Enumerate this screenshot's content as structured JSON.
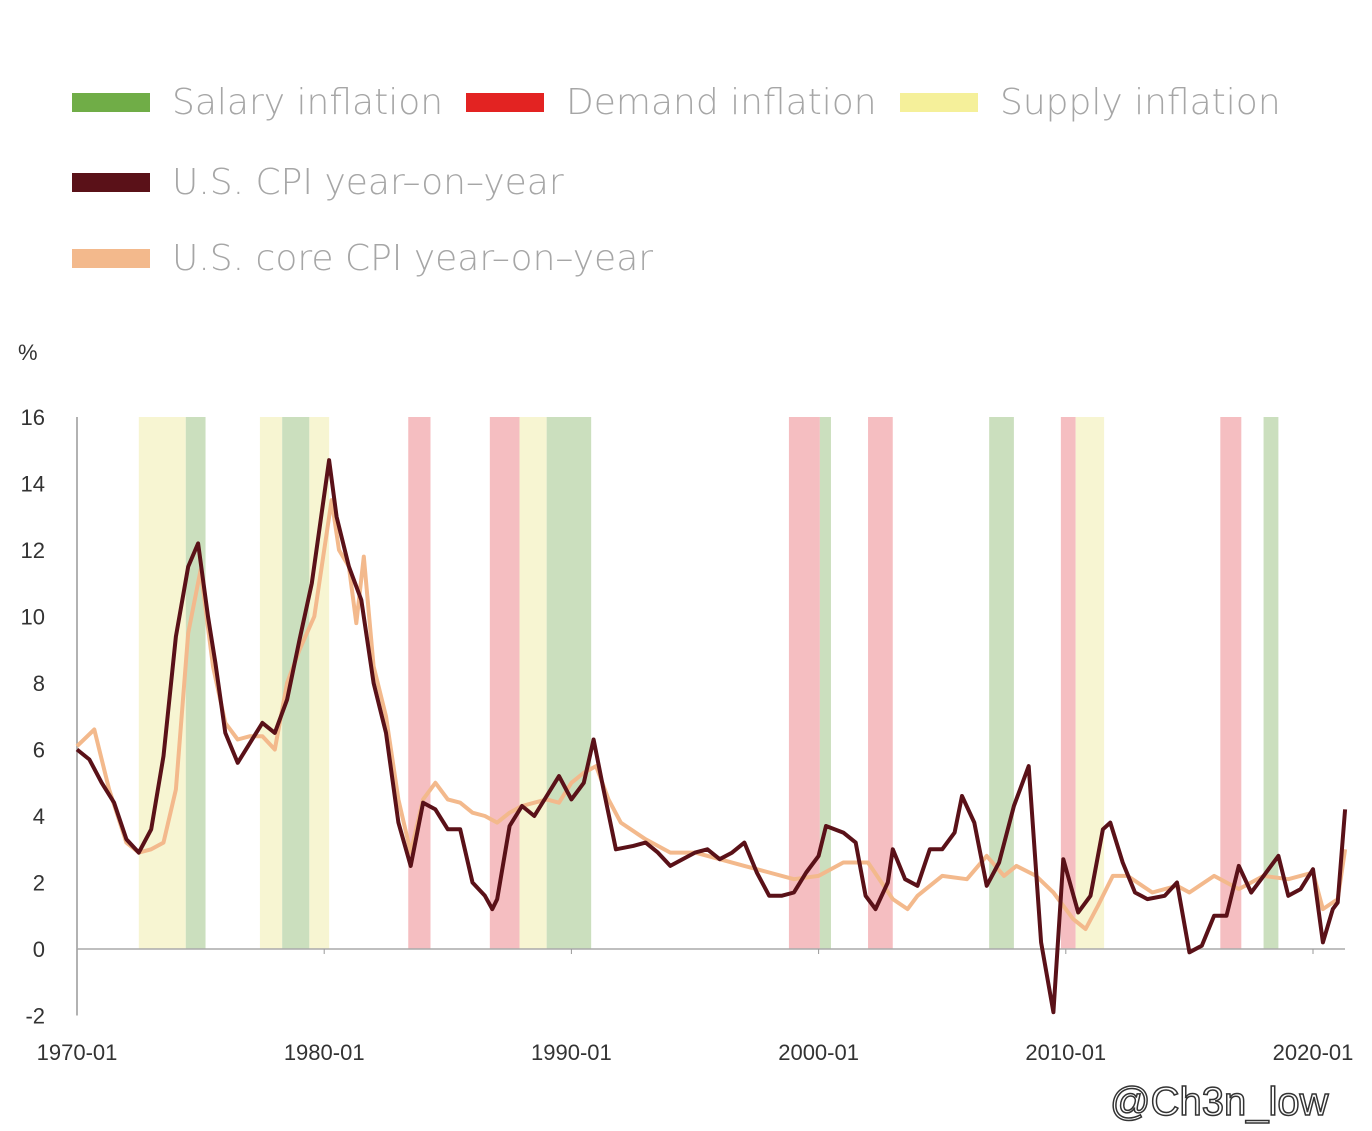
{
  "chart_data": {
    "type": "line",
    "ylabel": "%",
    "ylim": [
      -2,
      16
    ],
    "yticks": [
      "16",
      "14",
      "12",
      "10",
      "8",
      "6",
      "4",
      "2",
      "0",
      "-2"
    ],
    "xlim": [
      1970,
      2021.5
    ],
    "xticks": [
      {
        "label": "1970-01",
        "year": 1970
      },
      {
        "label": "1980-01",
        "year": 1980
      },
      {
        "label": "1990-01",
        "year": 1990
      },
      {
        "label": "2000-01",
        "year": 2000
      },
      {
        "label": "2010-01",
        "year": 2010
      },
      {
        "label": "2020-01",
        "year": 2020
      }
    ],
    "legend": [
      {
        "key": "salary",
        "label": "Salary inflation",
        "color": "#70ad47"
      },
      {
        "key": "demand",
        "label": "Demand inflation",
        "color": "#e32322"
      },
      {
        "key": "supply",
        "label": "Supply inflation",
        "color": "#f5f09a"
      },
      {
        "key": "cpi",
        "label": "U.S. CPI year–on–year",
        "color": "#5a1118"
      },
      {
        "key": "core",
        "label": "U.S. core CPI year–on–year",
        "color": "#f3b98c"
      }
    ],
    "regimes": [
      {
        "type": "supply",
        "start": 1972.5,
        "end": 1974.4
      },
      {
        "type": "salary",
        "start": 1974.4,
        "end": 1975.2
      },
      {
        "type": "supply",
        "start": 1977.4,
        "end": 1978.3
      },
      {
        "type": "salary",
        "start": 1978.3,
        "end": 1979.4
      },
      {
        "type": "supply",
        "start": 1979.4,
        "end": 1980.2
      },
      {
        "type": "demand",
        "start": 1983.4,
        "end": 1984.3
      },
      {
        "type": "demand",
        "start": 1986.7,
        "end": 1987.9
      },
      {
        "type": "supply",
        "start": 1987.9,
        "end": 1989.0
      },
      {
        "type": "salary",
        "start": 1989.0,
        "end": 1990.8
      },
      {
        "type": "demand",
        "start": 1998.8,
        "end": 2000.05
      },
      {
        "type": "salary",
        "start": 2000.05,
        "end": 2000.5
      },
      {
        "type": "demand",
        "start": 2002.0,
        "end": 2003.0
      },
      {
        "type": "salary",
        "start": 2006.9,
        "end": 2007.9
      },
      {
        "type": "demand",
        "start": 2009.8,
        "end": 2010.4
      },
      {
        "type": "supply",
        "start": 2010.4,
        "end": 2011.55
      },
      {
        "type": "demand",
        "start": 2016.25,
        "end": 2017.1
      },
      {
        "type": "salary",
        "start": 2018.0,
        "end": 2018.6
      }
    ],
    "series": [
      {
        "name": "U.S. CPI year-on-year",
        "key": "cpi",
        "points": [
          [
            1970,
            6.0
          ],
          [
            1970.5,
            5.7
          ],
          [
            1971,
            5.0
          ],
          [
            1971.5,
            4.4
          ],
          [
            1972,
            3.3
          ],
          [
            1972.5,
            2.9
          ],
          [
            1973,
            3.6
          ],
          [
            1973.5,
            5.8
          ],
          [
            1974,
            9.4
          ],
          [
            1974.5,
            11.5
          ],
          [
            1974.9,
            12.2
          ],
          [
            1975.3,
            10
          ],
          [
            1975.6,
            8.6
          ],
          [
            1976,
            6.5
          ],
          [
            1976.5,
            5.6
          ],
          [
            1977,
            6.2
          ],
          [
            1977.5,
            6.8
          ],
          [
            1978,
            6.5
          ],
          [
            1978.5,
            7.5
          ],
          [
            1979,
            9.3
          ],
          [
            1979.5,
            11
          ],
          [
            1980.2,
            14.7
          ],
          [
            1980.5,
            13
          ],
          [
            1981,
            11.5
          ],
          [
            1981.5,
            10.5
          ],
          [
            1982,
            8
          ],
          [
            1982.5,
            6.5
          ],
          [
            1983,
            3.8
          ],
          [
            1983.5,
            2.5
          ],
          [
            1984,
            4.4
          ],
          [
            1984.5,
            4.2
          ],
          [
            1985,
            3.6
          ],
          [
            1985.5,
            3.6
          ],
          [
            1986,
            2
          ],
          [
            1986.5,
            1.6
          ],
          [
            1986.8,
            1.2
          ],
          [
            1987,
            1.5
          ],
          [
            1987.5,
            3.7
          ],
          [
            1988,
            4.3
          ],
          [
            1988.5,
            4.0
          ],
          [
            1989,
            4.6
          ],
          [
            1989.5,
            5.2
          ],
          [
            1990,
            4.5
          ],
          [
            1990.5,
            5.0
          ],
          [
            1990.9,
            6.3
          ],
          [
            1991.3,
            4.8
          ],
          [
            1991.8,
            3.0
          ],
          [
            1992.5,
            3.1
          ],
          [
            1993,
            3.2
          ],
          [
            1993.5,
            2.9
          ],
          [
            1994,
            2.5
          ],
          [
            1994.5,
            2.7
          ],
          [
            1995,
            2.9
          ],
          [
            1995.5,
            3.0
          ],
          [
            1996,
            2.7
          ],
          [
            1996.5,
            2.9
          ],
          [
            1997,
            3.2
          ],
          [
            1997.5,
            2.3
          ],
          [
            1998,
            1.6
          ],
          [
            1998.5,
            1.6
          ],
          [
            1999,
            1.7
          ],
          [
            1999.5,
            2.3
          ],
          [
            2000,
            2.8
          ],
          [
            2000.3,
            3.7
          ],
          [
            2001,
            3.5
          ],
          [
            2001.5,
            3.2
          ],
          [
            2001.9,
            1.6
          ],
          [
            2002.3,
            1.2
          ],
          [
            2002.8,
            2.0
          ],
          [
            2003,
            3.0
          ],
          [
            2003.5,
            2.1
          ],
          [
            2004,
            1.9
          ],
          [
            2004.5,
            3.0
          ],
          [
            2005,
            3.0
          ],
          [
            2005.5,
            3.5
          ],
          [
            2005.8,
            4.6
          ],
          [
            2006.3,
            3.8
          ],
          [
            2006.8,
            1.9
          ],
          [
            2007.3,
            2.6
          ],
          [
            2007.9,
            4.3
          ],
          [
            2008.5,
            5.5
          ],
          [
            2009,
            0.2
          ],
          [
            2009.5,
            -1.9
          ],
          [
            2009.9,
            2.7
          ],
          [
            2010.5,
            1.1
          ],
          [
            2011,
            1.6
          ],
          [
            2011.5,
            3.6
          ],
          [
            2011.8,
            3.8
          ],
          [
            2012.3,
            2.6
          ],
          [
            2012.8,
            1.7
          ],
          [
            2013.3,
            1.5
          ],
          [
            2014,
            1.6
          ],
          [
            2014.5,
            2.0
          ],
          [
            2015,
            -0.1
          ],
          [
            2015.5,
            0.1
          ],
          [
            2016,
            1.0
          ],
          [
            2016.5,
            1.0
          ],
          [
            2017,
            2.5
          ],
          [
            2017.5,
            1.7
          ],
          [
            2018,
            2.2
          ],
          [
            2018.6,
            2.8
          ],
          [
            2019,
            1.6
          ],
          [
            2019.5,
            1.8
          ],
          [
            2020,
            2.4
          ],
          [
            2020.4,
            0.2
          ],
          [
            2020.8,
            1.2
          ],
          [
            2021,
            1.4
          ],
          [
            2021.3,
            4.2
          ]
        ]
      },
      {
        "name": "U.S. core CPI year-on-year",
        "key": "core",
        "points": [
          [
            1970,
            6.1
          ],
          [
            1970.7,
            6.6
          ],
          [
            1971.3,
            4.8
          ],
          [
            1972,
            3.2
          ],
          [
            1972.5,
            2.9
          ],
          [
            1973,
            3.0
          ],
          [
            1973.5,
            3.2
          ],
          [
            1974,
            4.8
          ],
          [
            1974.5,
            9.5
          ],
          [
            1975,
            11.4
          ],
          [
            1975.5,
            8.5
          ],
          [
            1976,
            6.8
          ],
          [
            1976.5,
            6.3
          ],
          [
            1977,
            6.4
          ],
          [
            1977.5,
            6.4
          ],
          [
            1978,
            6.0
          ],
          [
            1978.5,
            8.0
          ],
          [
            1979,
            9.0
          ],
          [
            1979.6,
            10
          ],
          [
            1980.3,
            13.5
          ],
          [
            1980.6,
            12
          ],
          [
            1981,
            11.5
          ],
          [
            1981.3,
            9.8
          ],
          [
            1981.6,
            11.8
          ],
          [
            1982,
            8.5
          ],
          [
            1982.5,
            7
          ],
          [
            1983,
            4.5
          ],
          [
            1983.5,
            2.9
          ],
          [
            1984,
            4.5
          ],
          [
            1984.5,
            5.0
          ],
          [
            1985,
            4.5
          ],
          [
            1985.5,
            4.4
          ],
          [
            1986,
            4.1
          ],
          [
            1986.5,
            4.0
          ],
          [
            1987,
            3.8
          ],
          [
            1987.5,
            4.1
          ],
          [
            1988,
            4.3
          ],
          [
            1988.5,
            4.4
          ],
          [
            1989,
            4.5
          ],
          [
            1989.5,
            4.4
          ],
          [
            1990,
            5.0
          ],
          [
            1990.5,
            5.3
          ],
          [
            1991,
            5.5
          ],
          [
            1991.5,
            4.5
          ],
          [
            1992,
            3.8
          ],
          [
            1993,
            3.3
          ],
          [
            1994,
            2.9
          ],
          [
            1995,
            2.9
          ],
          [
            1996,
            2.7
          ],
          [
            1997,
            2.5
          ],
          [
            1998,
            2.3
          ],
          [
            1999,
            2.1
          ],
          [
            2000,
            2.2
          ],
          [
            2001,
            2.6
          ],
          [
            2002,
            2.6
          ],
          [
            2003,
            1.5
          ],
          [
            2003.6,
            1.2
          ],
          [
            2004,
            1.6
          ],
          [
            2005,
            2.2
          ],
          [
            2006,
            2.1
          ],
          [
            2006.8,
            2.8
          ],
          [
            2007.5,
            2.2
          ],
          [
            2008,
            2.5
          ],
          [
            2008.8,
            2.2
          ],
          [
            2009.5,
            1.7
          ],
          [
            2010.3,
            0.9
          ],
          [
            2010.8,
            0.6
          ],
          [
            2011.3,
            1.3
          ],
          [
            2011.9,
            2.2
          ],
          [
            2012.5,
            2.2
          ],
          [
            2013.5,
            1.7
          ],
          [
            2014.5,
            1.9
          ],
          [
            2015,
            1.7
          ],
          [
            2016,
            2.2
          ],
          [
            2017,
            1.8
          ],
          [
            2018,
            2.2
          ],
          [
            2019,
            2.1
          ],
          [
            2020,
            2.3
          ],
          [
            2020.4,
            1.2
          ],
          [
            2021,
            1.5
          ],
          [
            2021.3,
            3.0
          ]
        ]
      }
    ]
  },
  "watermark": "@Ch3n_low"
}
